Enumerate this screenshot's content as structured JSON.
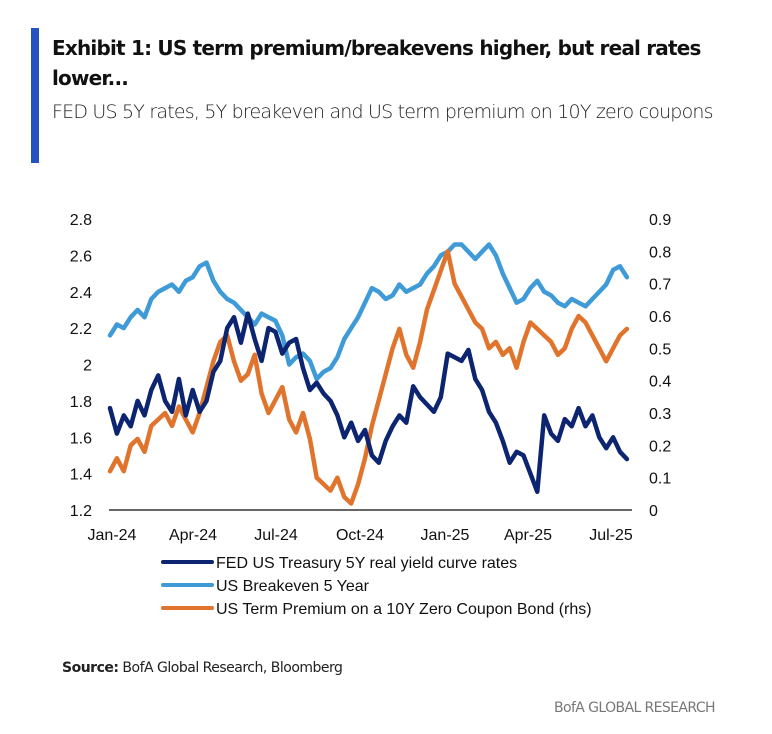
{
  "header": {
    "title": "Exhibit 1: US term premium/breakevens higher, but real rates lower...",
    "subtitle": "FED US 5Y rates, 5Y breakeven and US term premium on 10Y zero coupons"
  },
  "footer": {
    "source_label": "Source:",
    "source_text": "BofA Global Research, Bloomberg",
    "brand": "BofA GLOBAL RESEARCH"
  },
  "colors": {
    "accent": "#2454c0",
    "real_yield": "#0d2570",
    "breakeven": "#3f9ad8",
    "term_premium": "#e0742c"
  },
  "chart_data": {
    "type": "line",
    "title": "",
    "xlabel": "",
    "ylabel": "",
    "x_tick_labels": [
      "Jan-24",
      "Apr-24",
      "Jul-24",
      "Oct-24",
      "Jan-25",
      "Apr-25",
      "Jul-25"
    ],
    "x_range_months": [
      0,
      19
    ],
    "y_left": {
      "min": 1.2,
      "max": 2.8,
      "ticks": [
        "1.2",
        "1.4",
        "1.6",
        "1.8",
        "2",
        "2.2",
        "2.4",
        "2.6",
        "2.8"
      ]
    },
    "y_right": {
      "min": 0,
      "max": 0.9,
      "ticks": [
        "0",
        "0.1",
        "0.2",
        "0.3",
        "0.4",
        "0.5",
        "0.6",
        "0.7",
        "0.8",
        "0.9"
      ]
    },
    "grid": false,
    "legend_position": "bottom",
    "x_months": [
      0,
      0.25,
      0.5,
      0.75,
      1,
      1.25,
      1.5,
      1.75,
      2,
      2.25,
      2.5,
      2.75,
      3,
      3.25,
      3.5,
      3.75,
      4,
      4.25,
      4.5,
      4.75,
      5,
      5.25,
      5.5,
      5.75,
      6,
      6.25,
      6.5,
      6.75,
      7,
      7.25,
      7.5,
      7.75,
      8,
      8.25,
      8.5,
      8.75,
      9,
      9.25,
      9.5,
      9.75,
      10,
      10.25,
      10.5,
      10.75,
      11,
      11.25,
      11.5,
      11.75,
      12,
      12.25,
      12.5,
      12.75,
      13,
      13.25,
      13.5,
      13.75,
      14,
      14.25,
      14.5,
      14.75,
      15,
      15.25,
      15.5,
      15.75,
      16,
      16.25,
      16.5,
      16.75,
      17,
      17.25,
      17.5,
      17.75,
      18,
      18.25,
      18.5,
      18.75
    ],
    "series": [
      {
        "name": "FED US Treasury 5Y real yield curve rates",
        "axis": "left",
        "values": [
          1.76,
          1.62,
          1.72,
          1.66,
          1.8,
          1.72,
          1.86,
          1.94,
          1.8,
          1.74,
          1.92,
          1.72,
          1.86,
          1.74,
          1.8,
          1.96,
          2.02,
          2.2,
          2.26,
          2.12,
          2.28,
          2.14,
          2.02,
          2.2,
          2.18,
          2.06,
          2.12,
          2.14,
          1.98,
          1.86,
          1.9,
          1.84,
          1.8,
          1.72,
          1.6,
          1.68,
          1.58,
          1.64,
          1.5,
          1.46,
          1.58,
          1.66,
          1.72,
          1.68,
          1.88,
          1.82,
          1.78,
          1.74,
          1.82,
          2.06,
          2.04,
          2.02,
          2.08,
          1.92,
          1.86,
          1.74,
          1.68,
          1.58,
          1.46,
          1.52,
          1.5,
          1.4,
          1.3,
          1.72,
          1.62,
          1.58,
          1.7,
          1.66,
          1.76,
          1.66,
          1.72,
          1.6,
          1.54,
          1.6,
          1.52,
          1.48
        ]
      },
      {
        "name": "US Breakeven 5 Year",
        "axis": "left",
        "values": [
          2.16,
          2.22,
          2.2,
          2.26,
          2.3,
          2.26,
          2.36,
          2.4,
          2.42,
          2.44,
          2.4,
          2.46,
          2.48,
          2.54,
          2.56,
          2.46,
          2.4,
          2.36,
          2.34,
          2.3,
          2.26,
          2.22,
          2.28,
          2.26,
          2.24,
          2.16,
          2.0,
          2.04,
          2.06,
          2.02,
          1.92,
          1.96,
          1.98,
          2.04,
          2.14,
          2.2,
          2.26,
          2.34,
          2.42,
          2.4,
          2.36,
          2.38,
          2.44,
          2.4,
          2.42,
          2.44,
          2.5,
          2.54,
          2.6,
          2.62,
          2.66,
          2.66,
          2.62,
          2.58,
          2.62,
          2.66,
          2.6,
          2.5,
          2.42,
          2.34,
          2.36,
          2.42,
          2.46,
          2.4,
          2.38,
          2.34,
          2.32,
          2.36,
          2.34,
          2.32,
          2.36,
          2.4,
          2.44,
          2.52,
          2.54,
          2.48
        ]
      },
      {
        "name": "US Term Premium on a 10Y Zero Coupon Bond (rhs)",
        "axis": "right",
        "values": [
          0.12,
          0.16,
          0.12,
          0.2,
          0.22,
          0.18,
          0.26,
          0.28,
          0.3,
          0.26,
          0.32,
          0.28,
          0.24,
          0.3,
          0.38,
          0.46,
          0.52,
          0.54,
          0.46,
          0.4,
          0.42,
          0.48,
          0.36,
          0.3,
          0.34,
          0.38,
          0.28,
          0.24,
          0.3,
          0.22,
          0.1,
          0.08,
          0.06,
          0.1,
          0.04,
          0.02,
          0.08,
          0.16,
          0.26,
          0.34,
          0.42,
          0.5,
          0.56,
          0.48,
          0.44,
          0.52,
          0.62,
          0.68,
          0.74,
          0.8,
          0.7,
          0.66,
          0.62,
          0.58,
          0.56,
          0.5,
          0.52,
          0.48,
          0.5,
          0.44,
          0.52,
          0.58,
          0.56,
          0.54,
          0.52,
          0.48,
          0.5,
          0.56,
          0.6,
          0.58,
          0.54,
          0.5,
          0.46,
          0.5,
          0.54,
          0.56
        ]
      }
    ]
  }
}
